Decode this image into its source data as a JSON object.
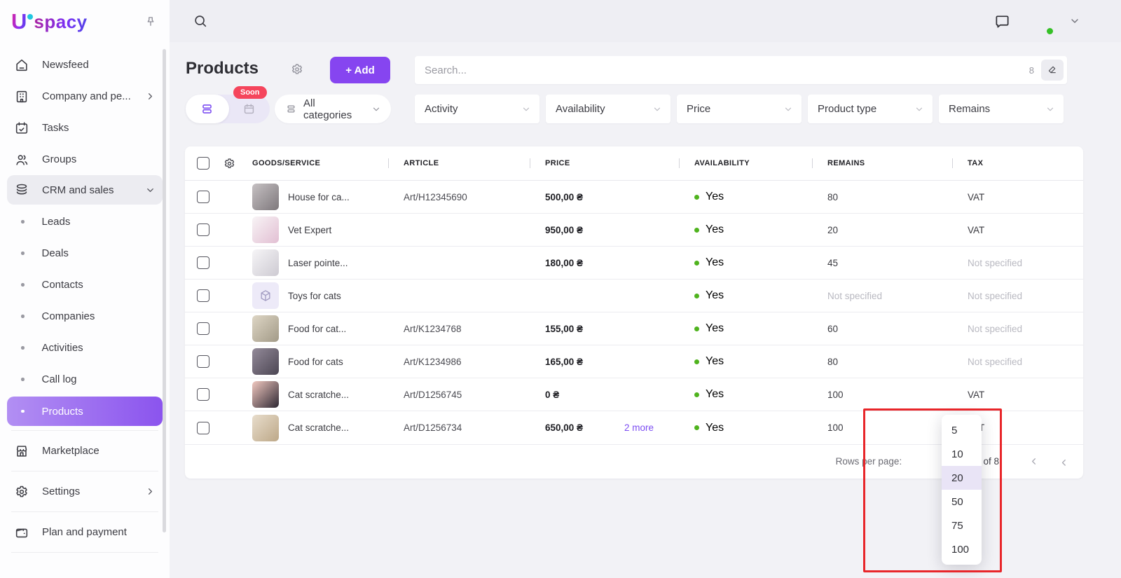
{
  "brand": {
    "logo_u": "U",
    "logo_rest": "spacy"
  },
  "sidebar": {
    "main_items": [
      {
        "label": "Newsfeed",
        "icon": "home"
      },
      {
        "label": "Company and pe...",
        "icon": "building",
        "chevron": "right"
      },
      {
        "label": "Tasks",
        "icon": "calendar"
      },
      {
        "label": "Groups",
        "icon": "users"
      },
      {
        "label": "CRM and sales",
        "icon": "layers",
        "chevron": "down",
        "open": true
      }
    ],
    "crm_subitems": [
      {
        "label": "Leads"
      },
      {
        "label": "Deals"
      },
      {
        "label": "Contacts"
      },
      {
        "label": "Companies"
      },
      {
        "label": "Activities"
      },
      {
        "label": "Call log"
      },
      {
        "label": "Products",
        "active": true
      }
    ],
    "bottom_items": [
      {
        "label": "Marketplace",
        "icon": "store"
      },
      {
        "label": "Settings",
        "icon": "gear",
        "chevron": "right"
      },
      {
        "label": "Plan and payment",
        "icon": "wallet"
      }
    ]
  },
  "header": {
    "title": "Products",
    "add_button": "+ Add"
  },
  "search": {
    "placeholder": "Search...",
    "count": "8"
  },
  "filters": {
    "soon_badge": "Soon",
    "categories": "All categories",
    "selects": [
      "Activity",
      "Availability",
      "Price",
      "Product type",
      "Remains"
    ]
  },
  "table": {
    "columns": [
      "GOODS/SERVICE",
      "ARTICLE",
      "PRICE",
      "AVAILABILITY",
      "REMAINS",
      "TAX"
    ],
    "rows": [
      {
        "name": "House for ca...",
        "article": "Art/H12345690",
        "price": "500,00 ₴",
        "more": "",
        "availability": "Yes",
        "remains": "80",
        "remains_muted": false,
        "tax": "VAT",
        "tax_muted": false,
        "img": [
          "#c6c1c3",
          "#7e787c"
        ],
        "placeholder": false
      },
      {
        "name": "Vet Expert",
        "article": "",
        "price": "950,00 ₴",
        "more": "",
        "availability": "Yes",
        "remains": "20",
        "remains_muted": false,
        "tax": "VAT",
        "tax_muted": false,
        "img": [
          "#f8f4f6",
          "#e2bfd3"
        ],
        "placeholder": false
      },
      {
        "name": "Laser pointe...",
        "article": "",
        "price": "180,00 ₴",
        "more": "",
        "availability": "Yes",
        "remains": "45",
        "remains_muted": false,
        "tax": "Not specified",
        "tax_muted": true,
        "img": [
          "#f6f5f7",
          "#cdcad2"
        ],
        "placeholder": false
      },
      {
        "name": "Toys for cats",
        "article": "",
        "price": "",
        "more": "",
        "availability": "Yes",
        "remains": "Not specified",
        "remains_muted": true,
        "tax": "Not specified",
        "tax_muted": true,
        "img": [],
        "placeholder": true
      },
      {
        "name": "Food for cat...",
        "article": "Art/K1234768",
        "price": "155,00 ₴",
        "more": "",
        "availability": "Yes",
        "remains": "60",
        "remains_muted": false,
        "tax": "Not specified",
        "tax_muted": true,
        "img": [
          "#ded6c5",
          "#a29a87"
        ],
        "placeholder": false
      },
      {
        "name": "Food for cats",
        "article": "Art/K1234986",
        "price": "165,00 ₴",
        "more": "",
        "availability": "Yes",
        "remains": "80",
        "remains_muted": false,
        "tax": "Not specified",
        "tax_muted": true,
        "img": [
          "#938a99",
          "#4c4653"
        ],
        "placeholder": false
      },
      {
        "name": "Cat scratche...",
        "article": "Art/D1256745",
        "price": "0 ₴",
        "more": "",
        "availability": "Yes",
        "remains": "100",
        "remains_muted": false,
        "tax": "VAT",
        "tax_muted": false,
        "img": [
          "#f2c9c0",
          "#2e2833"
        ],
        "placeholder": false
      },
      {
        "name": "Cat scratche...",
        "article": "Art/D1256734",
        "price": "650,00 ₴",
        "more": "2 more",
        "availability": "Yes",
        "remains": "100",
        "remains_muted": false,
        "tax": "VAT",
        "tax_muted": false,
        "img": [
          "#e8ddcc",
          "#bda888"
        ],
        "placeholder": false
      }
    ]
  },
  "pagination": {
    "rows_per_page_label": "Rows per page:",
    "range": "1–8 of 8"
  },
  "rows_menu": {
    "options": [
      "5",
      "10",
      "20",
      "50",
      "75",
      "100"
    ],
    "selected": "20"
  },
  "colors": {
    "accent": "#8645f0",
    "active_gradient_start": "#b28ff3",
    "active_gradient_end": "#8b54ee",
    "soon_badge": "#f5455c",
    "status_green": "#4fb31e",
    "link_purple": "#7c4df2",
    "annotation_red": "#e8262a"
  }
}
